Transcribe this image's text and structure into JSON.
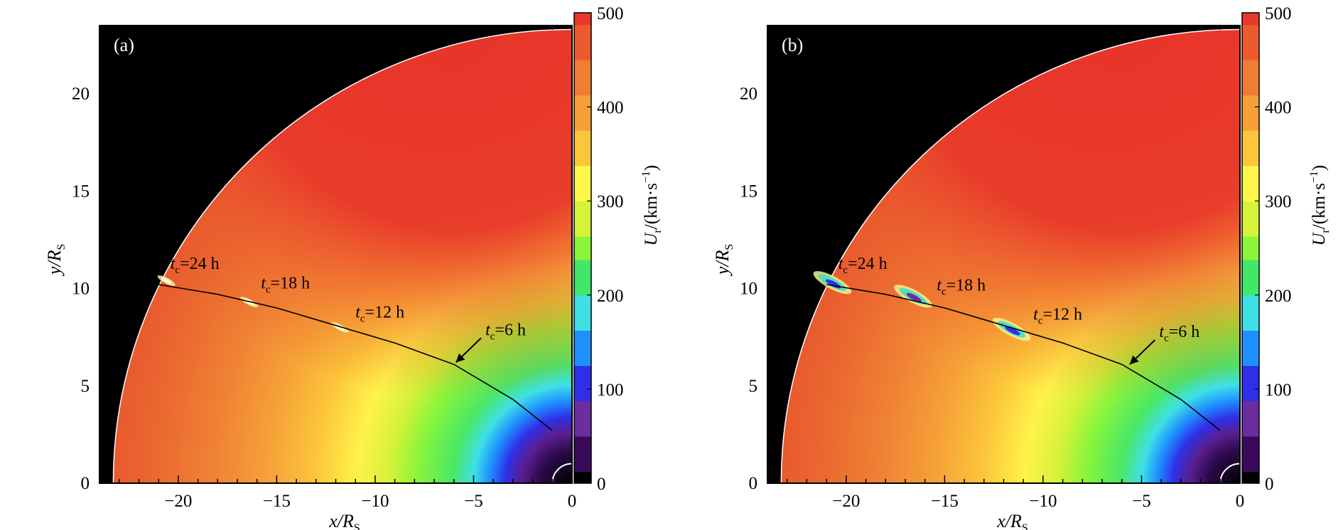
{
  "chart_data": [
    {
      "type": "heatmap",
      "panel_label": "(a)",
      "xlabel": "x/R",
      "xlabel_sub": "S",
      "ylabel": "y/R",
      "ylabel_sub": "S",
      "xlim": [
        -24,
        0
      ],
      "ylim": [
        0,
        23.5
      ],
      "x_ticks": [
        -20,
        -15,
        -10,
        -5,
        0
      ],
      "x_tick_labels": [
        "−20",
        "−15",
        "−10",
        "−5",
        "0"
      ],
      "y_ticks": [
        0,
        5,
        10,
        15,
        20
      ],
      "y_tick_labels": [
        "0",
        "5",
        "10",
        "15",
        "20"
      ],
      "outer_boundary_radius": 23.3,
      "inner_boundary_radius": 1.0,
      "colorbar": {
        "label": "U",
        "label_sub": "r",
        "label_units": "/(km·s",
        "label_exp": "−1",
        "label_close": ")",
        "range": [
          0,
          500
        ],
        "ticks": [
          0,
          100,
          200,
          300,
          400,
          500
        ],
        "tick_labels": [
          "0",
          "100",
          "200",
          "300",
          "400",
          "500"
        ],
        "colors": [
          "#000000",
          "#3a0a5a",
          "#6a2e9e",
          "#2f2fe8",
          "#1e90ff",
          "#3ee0e6",
          "#41e868",
          "#8cf53a",
          "#d7f23a",
          "#fff84a",
          "#fcc63a",
          "#f7a038",
          "#f07d34",
          "#ec5a2e",
          "#e8382a"
        ]
      },
      "trajectory_curve": {
        "x": [
          -21.0,
          -18.0,
          -15.0,
          -12.0,
          -9.0,
          -6.0,
          -3.0,
          -1.0
        ],
        "y": [
          10.2,
          9.7,
          9.0,
          8.1,
          7.2,
          6.1,
          4.3,
          2.7
        ]
      },
      "annotations": [
        {
          "t": "t",
          "sub": "c",
          "text": "=24 h",
          "x": -20.4,
          "y": 11.0
        },
        {
          "t": "t",
          "sub": "c",
          "text": "=18 h",
          "x": -15.8,
          "y": 10.0
        },
        {
          "t": "t",
          "sub": "c",
          "text": "=12 h",
          "x": -11.0,
          "y": 8.5
        },
        {
          "t": "t",
          "sub": "c",
          "text": "=6 h",
          "x": -4.4,
          "y": 7.6,
          "arrow_to": [
            -5.9,
            6.2
          ]
        }
      ],
      "disturbances": [
        {
          "x": -20.6,
          "y": 10.4,
          "min_speed": 420
        },
        {
          "x": -16.4,
          "y": 9.3,
          "min_speed": 420
        },
        {
          "x": -11.8,
          "y": 8.0,
          "min_speed": 420
        }
      ]
    },
    {
      "type": "heatmap",
      "panel_label": "(b)",
      "xlabel": "x/R",
      "xlabel_sub": "S",
      "ylabel": "y/R",
      "ylabel_sub": "S",
      "xlim": [
        -24,
        0
      ],
      "ylim": [
        0,
        23.5
      ],
      "x_ticks": [
        -20,
        -15,
        -10,
        -5,
        0
      ],
      "x_tick_labels": [
        "−20",
        "−15",
        "−10",
        "−5",
        "0"
      ],
      "y_ticks": [
        0,
        5,
        10,
        15,
        20
      ],
      "y_tick_labels": [
        "0",
        "5",
        "10",
        "15",
        "20"
      ],
      "outer_boundary_radius": 23.3,
      "inner_boundary_radius": 1.0,
      "colorbar": {
        "label": "U",
        "label_sub": "r",
        "label_units": "/(km·s",
        "label_exp": "−1",
        "label_close": ")",
        "range": [
          0,
          500
        ],
        "ticks": [
          0,
          100,
          200,
          300,
          400,
          500
        ],
        "tick_labels": [
          "0",
          "100",
          "200",
          "300",
          "400",
          "500"
        ],
        "colors": [
          "#000000",
          "#3a0a5a",
          "#6a2e9e",
          "#2f2fe8",
          "#1e90ff",
          "#3ee0e6",
          "#41e868",
          "#8cf53a",
          "#d7f23a",
          "#fff84a",
          "#fcc63a",
          "#f7a038",
          "#f07d34",
          "#ec5a2e",
          "#e8382a"
        ]
      },
      "trajectory_curve": {
        "x": [
          -21.0,
          -18.0,
          -15.0,
          -12.0,
          -9.0,
          -6.0,
          -3.0,
          -1.0
        ],
        "y": [
          10.2,
          9.7,
          9.0,
          8.1,
          7.2,
          6.1,
          4.3,
          2.7
        ]
      },
      "annotations": [
        {
          "t": "t",
          "sub": "c",
          "text": "=24 h",
          "x": -20.4,
          "y": 11.0
        },
        {
          "t": "t",
          "sub": "c",
          "text": "=18 h",
          "x": -15.4,
          "y": 9.9
        },
        {
          "t": "t",
          "sub": "c",
          "text": "=12 h",
          "x": -10.5,
          "y": 8.4
        },
        {
          "t": "t",
          "sub": "c",
          "text": "=6 h",
          "x": -4.1,
          "y": 7.5,
          "arrow_to": [
            -5.6,
            6.1
          ]
        }
      ],
      "disturbances": [
        {
          "x": -20.7,
          "y": 10.3,
          "min_speed": 100
        },
        {
          "x": -16.6,
          "y": 9.6,
          "min_speed": 80
        },
        {
          "x": -11.6,
          "y": 7.9,
          "min_speed": 100
        }
      ]
    }
  ]
}
